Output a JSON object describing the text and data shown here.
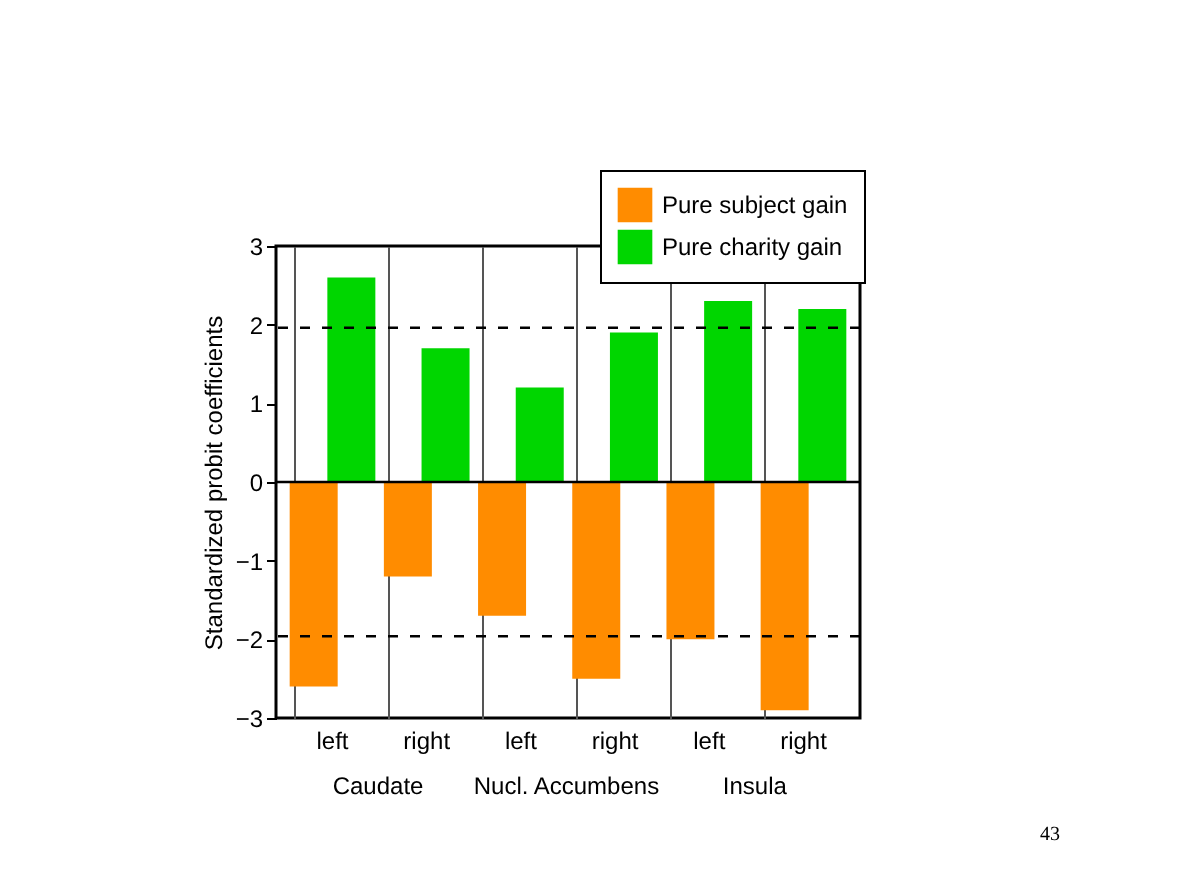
{
  "chart_data": {
    "type": "bar",
    "ylabel": "Standardized probit coefficients",
    "categories": [
      "left",
      "right",
      "left",
      "right",
      "left",
      "right"
    ],
    "series": [
      {
        "name": "Pure subject gain",
        "color": "#ff8c00",
        "values": [
          -2.6,
          -1.2,
          -1.7,
          -2.5,
          -2.0,
          -2.9
        ]
      },
      {
        "name": "Pure charity gain",
        "color": "#00d600",
        "values": [
          2.6,
          1.7,
          1.2,
          1.9,
          2.3,
          2.2
        ]
      }
    ],
    "ylim": [
      -3,
      3
    ],
    "yticks": [
      -3,
      -2,
      -1,
      0,
      1,
      2,
      3
    ],
    "grid": "x",
    "legend": "top right",
    "ref_lines": [
      {
        "axis": "y",
        "value": 1.96,
        "line_style": "dashed"
      },
      {
        "axis": "y",
        "value": -1.96,
        "line_style": "dashed"
      },
      {
        "axis": "y",
        "value": 0,
        "line_style": "solid"
      }
    ],
    "annotations": [
      "Caudate",
      "Nucl. Accumbens",
      "Insula",
      "43"
    ]
  }
}
